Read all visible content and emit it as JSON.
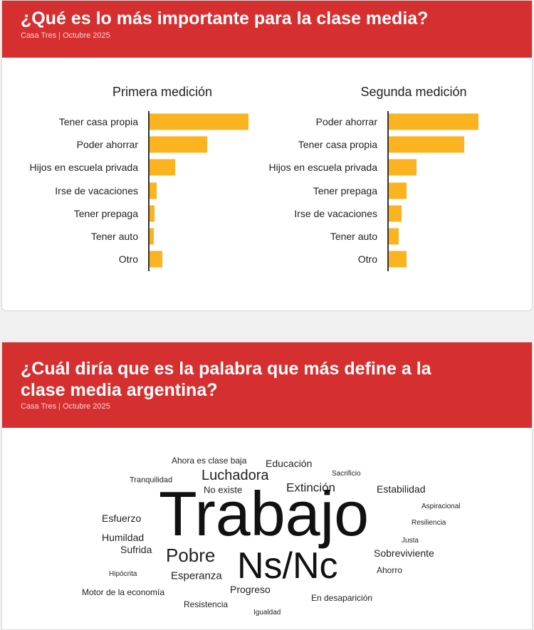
{
  "section1": {
    "title": "¿Qué es lo más importante para la clase media?",
    "subtitle": "Casa Tres | Octubre 2025"
  },
  "chart_data": [
    {
      "type": "bar",
      "orientation": "horizontal",
      "title": "Primera medición",
      "categories": [
        "Tener casa propia",
        "Poder ahorrar",
        "Hijos en escuela privada",
        "Irse de vacaciones",
        "Tener prepaga",
        "Tener auto",
        "Otro"
      ],
      "values": [
        100,
        58,
        26,
        7,
        5,
        4,
        13
      ],
      "value_units": "relative (no axis shown)",
      "xlim": [
        0,
        100
      ],
      "color": "#fbb320"
    },
    {
      "type": "bar",
      "orientation": "horizontal",
      "title": "Segunda medición",
      "categories": [
        "Poder ahorrar",
        "Tener casa propia",
        "Hijos en escuela privada",
        "Tener prepaga",
        "Irse de vacaciones",
        "Tener auto",
        "Otro"
      ],
      "values": [
        91,
        76,
        28,
        18,
        13,
        10,
        18
      ],
      "value_units": "relative (no axis shown)",
      "xlim": [
        0,
        100
      ],
      "color": "#fbb320"
    }
  ],
  "section2": {
    "title_line1": "¿Cuál diría que es la palabra que más define a la",
    "title_line2": "clase media argentina?",
    "subtitle": "Casa Tres | Octubre 2025",
    "words": [
      "Ahora es clase baja",
      "Educación",
      "Sacrificio",
      "Tranquilidad",
      "Luchadora",
      "Extinción",
      "Estabilidad",
      "No existe",
      "Trabajo",
      "Aspiracional",
      "Esfuerzo",
      "Resiliencia",
      "Humildad",
      "Justa",
      "Sufrida",
      "Pobre",
      "Ns/Nc",
      "Sobreviviente",
      "Ahorro",
      "Hipócrita",
      "Esperanza",
      "Progreso",
      "Motor de la economía",
      "En desaparición",
      "Resistencia",
      "Igualdad"
    ]
  }
}
